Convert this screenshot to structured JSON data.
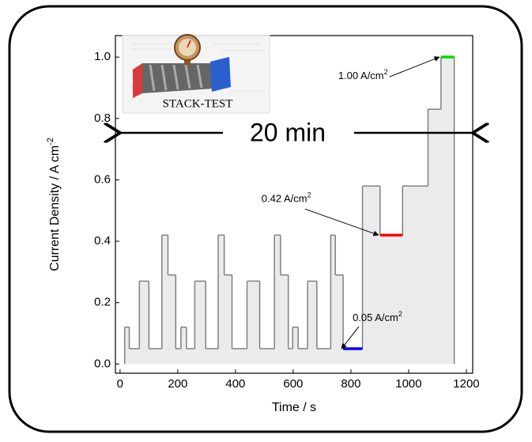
{
  "chart_data": {
    "type": "step",
    "x_label": "Time / s",
    "y_label": {
      "text": "Current Density / A cm",
      "sup": "-2"
    },
    "x": [
      16,
      32,
      67,
      100,
      145,
      166,
      193,
      211,
      230,
      259,
      297,
      340,
      361,
      388,
      440,
      484,
      535,
      556,
      583,
      598,
      617,
      650,
      682,
      730,
      746,
      773,
      840,
      901,
      979,
      1067,
      1112,
      1158
    ],
    "values": [
      0.12,
      0.05,
      0.27,
      0.05,
      0.42,
      0.29,
      0.05,
      0.12,
      0.05,
      0.27,
      0.05,
      0.42,
      0.29,
      0.05,
      0.27,
      0.05,
      0.42,
      0.29,
      0.05,
      0.12,
      0.05,
      0.27,
      0.05,
      0.42,
      0.29,
      0.05,
      0.58,
      0.42,
      0.58,
      0.83,
      1.0,
      0
    ],
    "color": "#808080",
    "fill": "#ebebeb",
    "highlights": [
      {
        "x": [
          773,
          840
        ],
        "values": [
          0.05,
          0.05
        ],
        "color": "#0000ff",
        "label": {
          "text": "0.05 A/cm",
          "sup": "2"
        }
      },
      {
        "x": [
          901,
          979
        ],
        "values": [
          0.42,
          0.42
        ],
        "color": "#ff0000",
        "label": {
          "text": "0.42 A/cm",
          "sup": "2"
        }
      },
      {
        "x": [
          1112,
          1158
        ],
        "values": [
          1.0,
          1.0
        ],
        "color": "#00dd00",
        "label": {
          "text": "1.00 A/cm",
          "sup": "2"
        }
      }
    ],
    "span_label": "20 min",
    "logo_text": "STACK-TEST",
    "xlim": [
      -16,
      1222
    ],
    "ylim": [
      -0.03,
      1.07
    ],
    "xticks": [
      0,
      200,
      400,
      600,
      800,
      1000,
      1200
    ],
    "yticks": [
      {
        "value": 0,
        "label": "0.0"
      },
      0.2,
      0.4,
      0.6,
      0.8,
      {
        "value": 1,
        "label": "1.0"
      }
    ]
  }
}
